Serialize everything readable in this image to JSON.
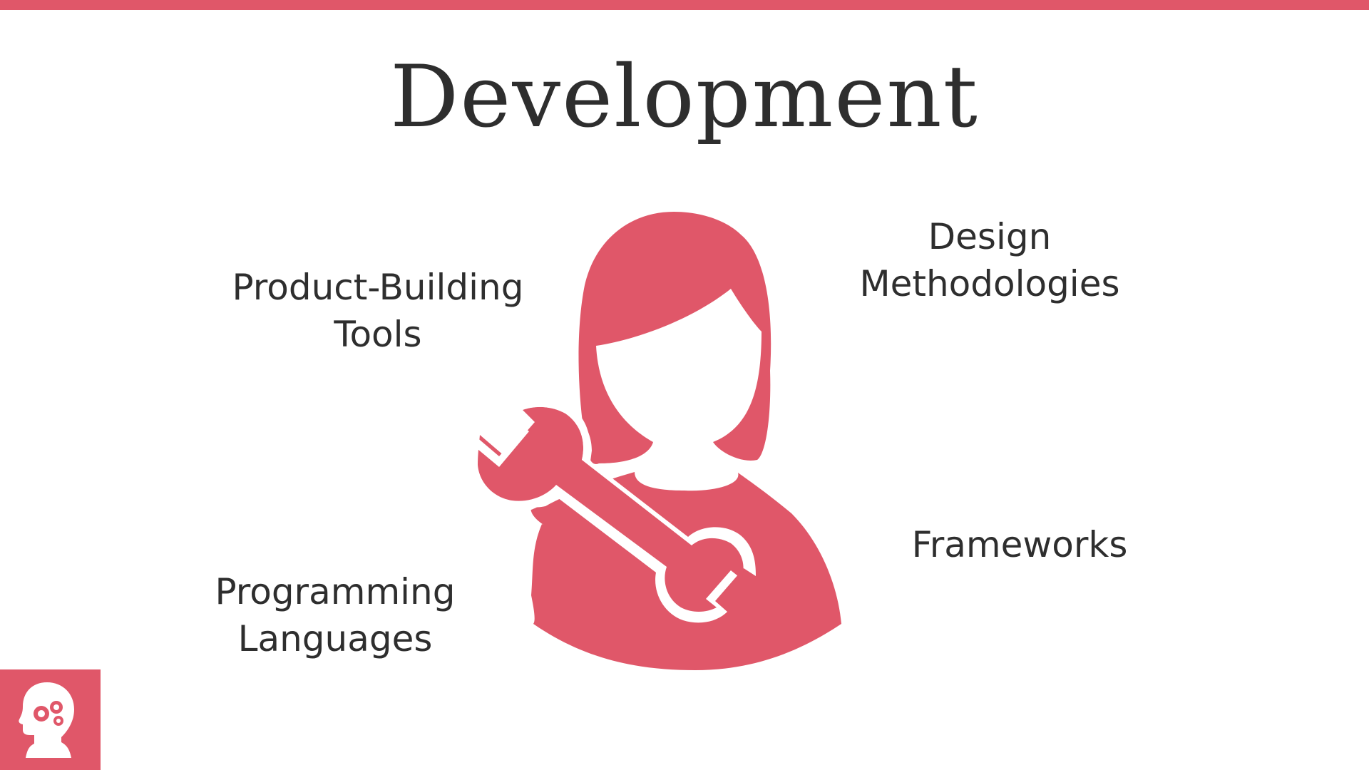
{
  "slide": {
    "title": "Development",
    "accent_color": "#e05769",
    "text_color": "#2e2e2e"
  },
  "labels": {
    "product_building_tools": [
      "Product-Building",
      "Tools"
    ],
    "design_methodologies": [
      "Design",
      "Methodologies"
    ],
    "frameworks": [
      "Frameworks"
    ],
    "programming_languages": [
      "Programming",
      "Languages"
    ]
  },
  "icons": {
    "main": "developer-woman-with-wrench-icon",
    "logo": "head-with-gears-icon"
  }
}
